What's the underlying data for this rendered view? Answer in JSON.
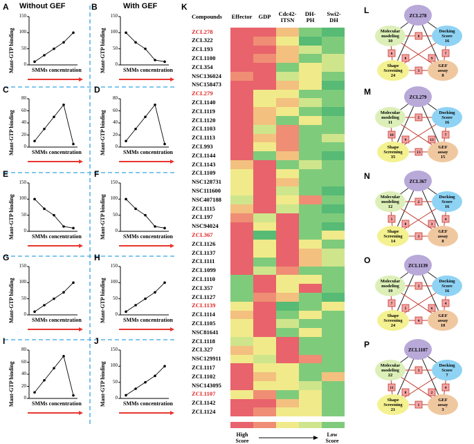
{
  "figure": {
    "panel_letters": [
      "A",
      "B",
      "C",
      "D",
      "E",
      "F",
      "G",
      "H",
      "I",
      "J",
      "K",
      "L",
      "M",
      "N",
      "O",
      "P"
    ],
    "left_titles": {
      "without": "Without GEF",
      "with": "With GEF"
    }
  },
  "mini_charts": [
    {
      "id": "A",
      "ylabel": "Mant-GTP binding",
      "xlabel": "SMMs  concentration",
      "yticks": [
        "0",
        "50",
        "100",
        "150"
      ],
      "values": [
        10,
        30,
        50,
        70,
        100
      ],
      "ylim": [
        0,
        150
      ]
    },
    {
      "id": "B",
      "ylabel": "Mant-GTP binding",
      "xlabel": "SMMs  concentration",
      "yticks": [
        "0",
        "50",
        "100",
        "150"
      ],
      "values": [
        100,
        70,
        50,
        15,
        10
      ],
      "ylim": [
        0,
        150
      ]
    },
    {
      "id": "C",
      "ylabel": "Mant-GTP binding",
      "xlabel": "SMMs  concentration",
      "yticks": [
        "0",
        "20",
        "40",
        "60",
        "80"
      ],
      "values": [
        10,
        30,
        50,
        70,
        5
      ],
      "ylim": [
        0,
        80
      ]
    },
    {
      "id": "D",
      "ylabel": "Mant-GTP binding",
      "xlabel": "SMMs  concentration",
      "yticks": [
        "0",
        "20",
        "40",
        "60",
        "80"
      ],
      "values": [
        10,
        30,
        50,
        70,
        5
      ],
      "ylim": [
        0,
        80
      ]
    },
    {
      "id": "E",
      "ylabel": "Mant-GTP binding",
      "xlabel": "SMMs  concentration",
      "yticks": [
        "0",
        "50",
        "100",
        "150"
      ],
      "values": [
        100,
        70,
        50,
        15,
        10
      ],
      "ylim": [
        0,
        150
      ]
    },
    {
      "id": "F",
      "ylabel": "Mant-GTP binding",
      "xlabel": "SMMs  concentration",
      "yticks": [
        "0",
        "50",
        "100",
        "150"
      ],
      "values": [
        100,
        70,
        50,
        15,
        10
      ],
      "ylim": [
        0,
        150
      ]
    },
    {
      "id": "G",
      "ylabel": "Mant-GTP binding",
      "xlabel": "SMMs  concentration",
      "yticks": [
        "0",
        "50",
        "100",
        "150"
      ],
      "values": [
        10,
        30,
        50,
        70,
        100
      ],
      "ylim": [
        0,
        150
      ]
    },
    {
      "id": "H",
      "ylabel": "Mant-GTP binding",
      "xlabel": "SMMs  concentration",
      "yticks": [
        "0",
        "50",
        "100",
        "150"
      ],
      "values": [
        10,
        30,
        50,
        70,
        100
      ],
      "ylim": [
        0,
        150
      ]
    },
    {
      "id": "I",
      "ylabel": "Mant-GTP binding",
      "xlabel": "SMMs  concentration",
      "yticks": [
        "0",
        "20",
        "40",
        "60",
        "80"
      ],
      "values": [
        10,
        30,
        50,
        70,
        5
      ],
      "ylim": [
        0,
        80
      ]
    },
    {
      "id": "J",
      "ylabel": "Mant-GTP binding",
      "xlabel": "SMMs  concentration",
      "yticks": [
        "0",
        "50",
        "100",
        "150"
      ],
      "values": [
        10,
        30,
        50,
        70,
        100
      ],
      "ylim": [
        0,
        150
      ]
    }
  ],
  "heatmap": {
    "headers": [
      "Compounds",
      "Effector",
      "GDP",
      "Cdc42-\nITSN",
      "DH-\nPH",
      "Swi2-\nDH"
    ],
    "colors": {
      "1": "#e8636b",
      "2": "#ef8e74",
      "3": "#f3c07f",
      "4": "#f1ea8a",
      "5": "#cfe58c",
      "6": "#7fcb7c",
      "7": "#57bb75"
    },
    "rows": [
      {
        "name": "ZCL278",
        "red": true,
        "v": [
          1,
          1,
          3,
          6,
          7
        ]
      },
      {
        "name": "ZCL322",
        "red": false,
        "v": [
          1,
          2,
          4,
          7,
          6
        ]
      },
      {
        "name": "ZCL193",
        "red": false,
        "v": [
          1,
          1,
          3,
          5,
          6
        ]
      },
      {
        "name": "ZCL1100",
        "red": false,
        "v": [
          1,
          2,
          3,
          6,
          5
        ]
      },
      {
        "name": "ZCL354",
        "red": false,
        "v": [
          1,
          1,
          6,
          4,
          5
        ]
      },
      {
        "name": "NSC136024",
        "red": false,
        "v": [
          2,
          1,
          5,
          4,
          6
        ]
      },
      {
        "name": "NSC158473",
        "red": false,
        "v": [
          1,
          1,
          3,
          4,
          7
        ]
      },
      {
        "name": "ZCL279",
        "red": true,
        "v": [
          1,
          4,
          4,
          6,
          6
        ]
      },
      {
        "name": "ZCL1140",
        "red": false,
        "v": [
          1,
          4,
          3,
          5,
          6
        ]
      },
      {
        "name": "ZCL1119",
        "red": false,
        "v": [
          1,
          3,
          4,
          6,
          7
        ]
      },
      {
        "name": "ZCL1120",
        "red": false,
        "v": [
          1,
          3,
          6,
          4,
          6
        ]
      },
      {
        "name": "ZCL1103",
        "red": false,
        "v": [
          1,
          5,
          2,
          6,
          6
        ]
      },
      {
        "name": "ZCL1113",
        "red": false,
        "v": [
          1,
          3,
          2,
          6,
          5
        ]
      },
      {
        "name": "ZCL993",
        "red": false,
        "v": [
          1,
          4,
          2,
          6,
          6
        ]
      },
      {
        "name": "ZCL1144",
        "red": false,
        "v": [
          1,
          6,
          3,
          6,
          7
        ]
      },
      {
        "name": "ZCL1143",
        "red": false,
        "v": [
          3,
          1,
          6,
          5,
          6
        ]
      },
      {
        "name": "ZCL1109",
        "red": false,
        "v": [
          4,
          1,
          4,
          6,
          6
        ]
      },
      {
        "name": "NSC128731",
        "red": false,
        "v": [
          4,
          1,
          3,
          6,
          6
        ]
      },
      {
        "name": "NSC111600",
        "red": false,
        "v": [
          4,
          1,
          5,
          6,
          7
        ]
      },
      {
        "name": "NSC407188",
        "red": false,
        "v": [
          5,
          1,
          4,
          2,
          6
        ]
      },
      {
        "name": "ZCL1115",
        "red": false,
        "v": [
          3,
          1,
          5,
          6,
          7
        ]
      },
      {
        "name": "ZCL197",
        "red": false,
        "v": [
          2,
          5,
          1,
          6,
          6
        ]
      },
      {
        "name": "NSC94024",
        "red": false,
        "v": [
          1,
          4,
          1,
          6,
          7
        ]
      },
      {
        "name": "ZCL367",
        "red": true,
        "v": [
          1,
          7,
          1,
          6,
          4
        ]
      },
      {
        "name": "ZCL1126",
        "red": false,
        "v": [
          1,
          4,
          1,
          4,
          6
        ]
      },
      {
        "name": "ZCL1137",
        "red": false,
        "v": [
          1,
          4,
          1,
          3,
          5
        ]
      },
      {
        "name": "ZCL1111",
        "red": false,
        "v": [
          1,
          6,
          1,
          3,
          5
        ]
      },
      {
        "name": "ZCL1099",
        "red": false,
        "v": [
          1,
          5,
          2,
          6,
          6
        ]
      },
      {
        "name": "ZCL1110",
        "red": false,
        "v": [
          6,
          1,
          4,
          4,
          6
        ]
      },
      {
        "name": "ZCL357",
        "red": false,
        "v": [
          6,
          1,
          4,
          1,
          6
        ]
      },
      {
        "name": "ZCL1127",
        "red": false,
        "v": [
          6,
          2,
          3,
          6,
          7
        ]
      },
      {
        "name": "ZCL1139",
        "red": true,
        "v": [
          4,
          1,
          7,
          6,
          4
        ]
      },
      {
        "name": "ZCL1114",
        "red": false,
        "v": [
          3,
          1,
          6,
          4,
          6
        ]
      },
      {
        "name": "ZCL1105",
        "red": false,
        "v": [
          4,
          1,
          5,
          6,
          6
        ]
      },
      {
        "name": "NSC81641",
        "red": false,
        "v": [
          4,
          1,
          6,
          4,
          6
        ]
      },
      {
        "name": "ZCL1118",
        "red": false,
        "v": [
          5,
          4,
          1,
          6,
          6
        ]
      },
      {
        "name": "ZCL327",
        "red": false,
        "v": [
          3,
          4,
          1,
          6,
          6
        ]
      },
      {
        "name": "NSC129911",
        "red": false,
        "v": [
          4,
          5,
          1,
          2,
          6
        ]
      },
      {
        "name": "ZCL1117",
        "red": false,
        "v": [
          1,
          4,
          4,
          6,
          6
        ]
      },
      {
        "name": "ZCL1102",
        "red": false,
        "v": [
          1,
          3,
          4,
          6,
          3
        ]
      },
      {
        "name": "NSC143095",
        "red": false,
        "v": [
          1,
          4,
          4,
          5,
          6
        ]
      },
      {
        "name": "ZCL1107",
        "red": true,
        "v": [
          4,
          2,
          6,
          4,
          6
        ]
      },
      {
        "name": "ZCL1142",
        "red": false,
        "v": [
          1,
          1,
          3,
          4,
          6
        ]
      },
      {
        "name": "ZCL1124",
        "red": false,
        "v": [
          1,
          2,
          4,
          4,
          6
        ]
      }
    ],
    "legend_row": [
      1,
      2,
      4,
      5,
      6
    ],
    "legend_high": "High\nScore",
    "legend_low": "Low\nScore"
  },
  "networks": [
    {
      "id": "L",
      "center": "ZCL278",
      "mol": "Molecular\nmodeling",
      "mol_n": "10",
      "dock": "Docking\nScore",
      "dock_n": "16",
      "shape": "Shape\nScreening",
      "shape_n": "24",
      "gef": "GEF\nassay",
      "gef_n": "8",
      "e_top": "8",
      "e_ml": "6",
      "e_mr": "7",
      "e_bot": "3",
      "e_x1": "8",
      "e_x2": "9"
    },
    {
      "id": "M",
      "center": "ZCL279",
      "mol": "Molecular\nmodeling",
      "mol_n": "11",
      "dock": "Docking\nScore",
      "dock_n": "16",
      "shape": "Shape\nScreening",
      "shape_n": "35",
      "gef": "GEF\nassay",
      "gef_n": "15",
      "e_top": "5",
      "e_ml": "10",
      "e_mr": "7",
      "e_bot": "13",
      "e_x1": "9",
      "e_x2": "13"
    },
    {
      "id": "N",
      "center": "ZCL367",
      "mol": "Molecular\nmodeling",
      "mol_n": "12",
      "dock": "Docking\nScore",
      "dock_n": "16",
      "shape": "Shape\nScreening",
      "shape_n": "14",
      "gef": "GEF\nassay",
      "gef_n": "8",
      "e_top": "2",
      "e_ml": "5",
      "e_mr": "4",
      "e_bot": "3",
      "e_x1": "8",
      "e_x2": "3"
    },
    {
      "id": "O",
      "center": "ZCL1139",
      "mol": "Molecular\nmodeling",
      "mol_n": "19",
      "dock": "Docking\nScore",
      "dock_n": "16",
      "shape": "Shape\nScreening",
      "shape_n": "24",
      "gef": "GEF\nassay",
      "gef_n": "10",
      "e_top": "3",
      "e_ml": "7",
      "e_mr": "4",
      "e_bot": "4",
      "e_x1": "5",
      "e_x2": "6"
    },
    {
      "id": "P",
      "center": "ZCL1107",
      "mol": "Molecular\nmodeling",
      "mol_n": "22",
      "dock": "Docking\nScore",
      "dock_n": "7",
      "shape": "Shape\nScreening",
      "shape_n": "21",
      "gef": "GEF\nassay",
      "gef_n": "3",
      "e_top": "3",
      "e_ml": "11",
      "e_mr": "4",
      "e_bot": "1",
      "e_x1": "8",
      "e_x2": "2"
    }
  ]
}
